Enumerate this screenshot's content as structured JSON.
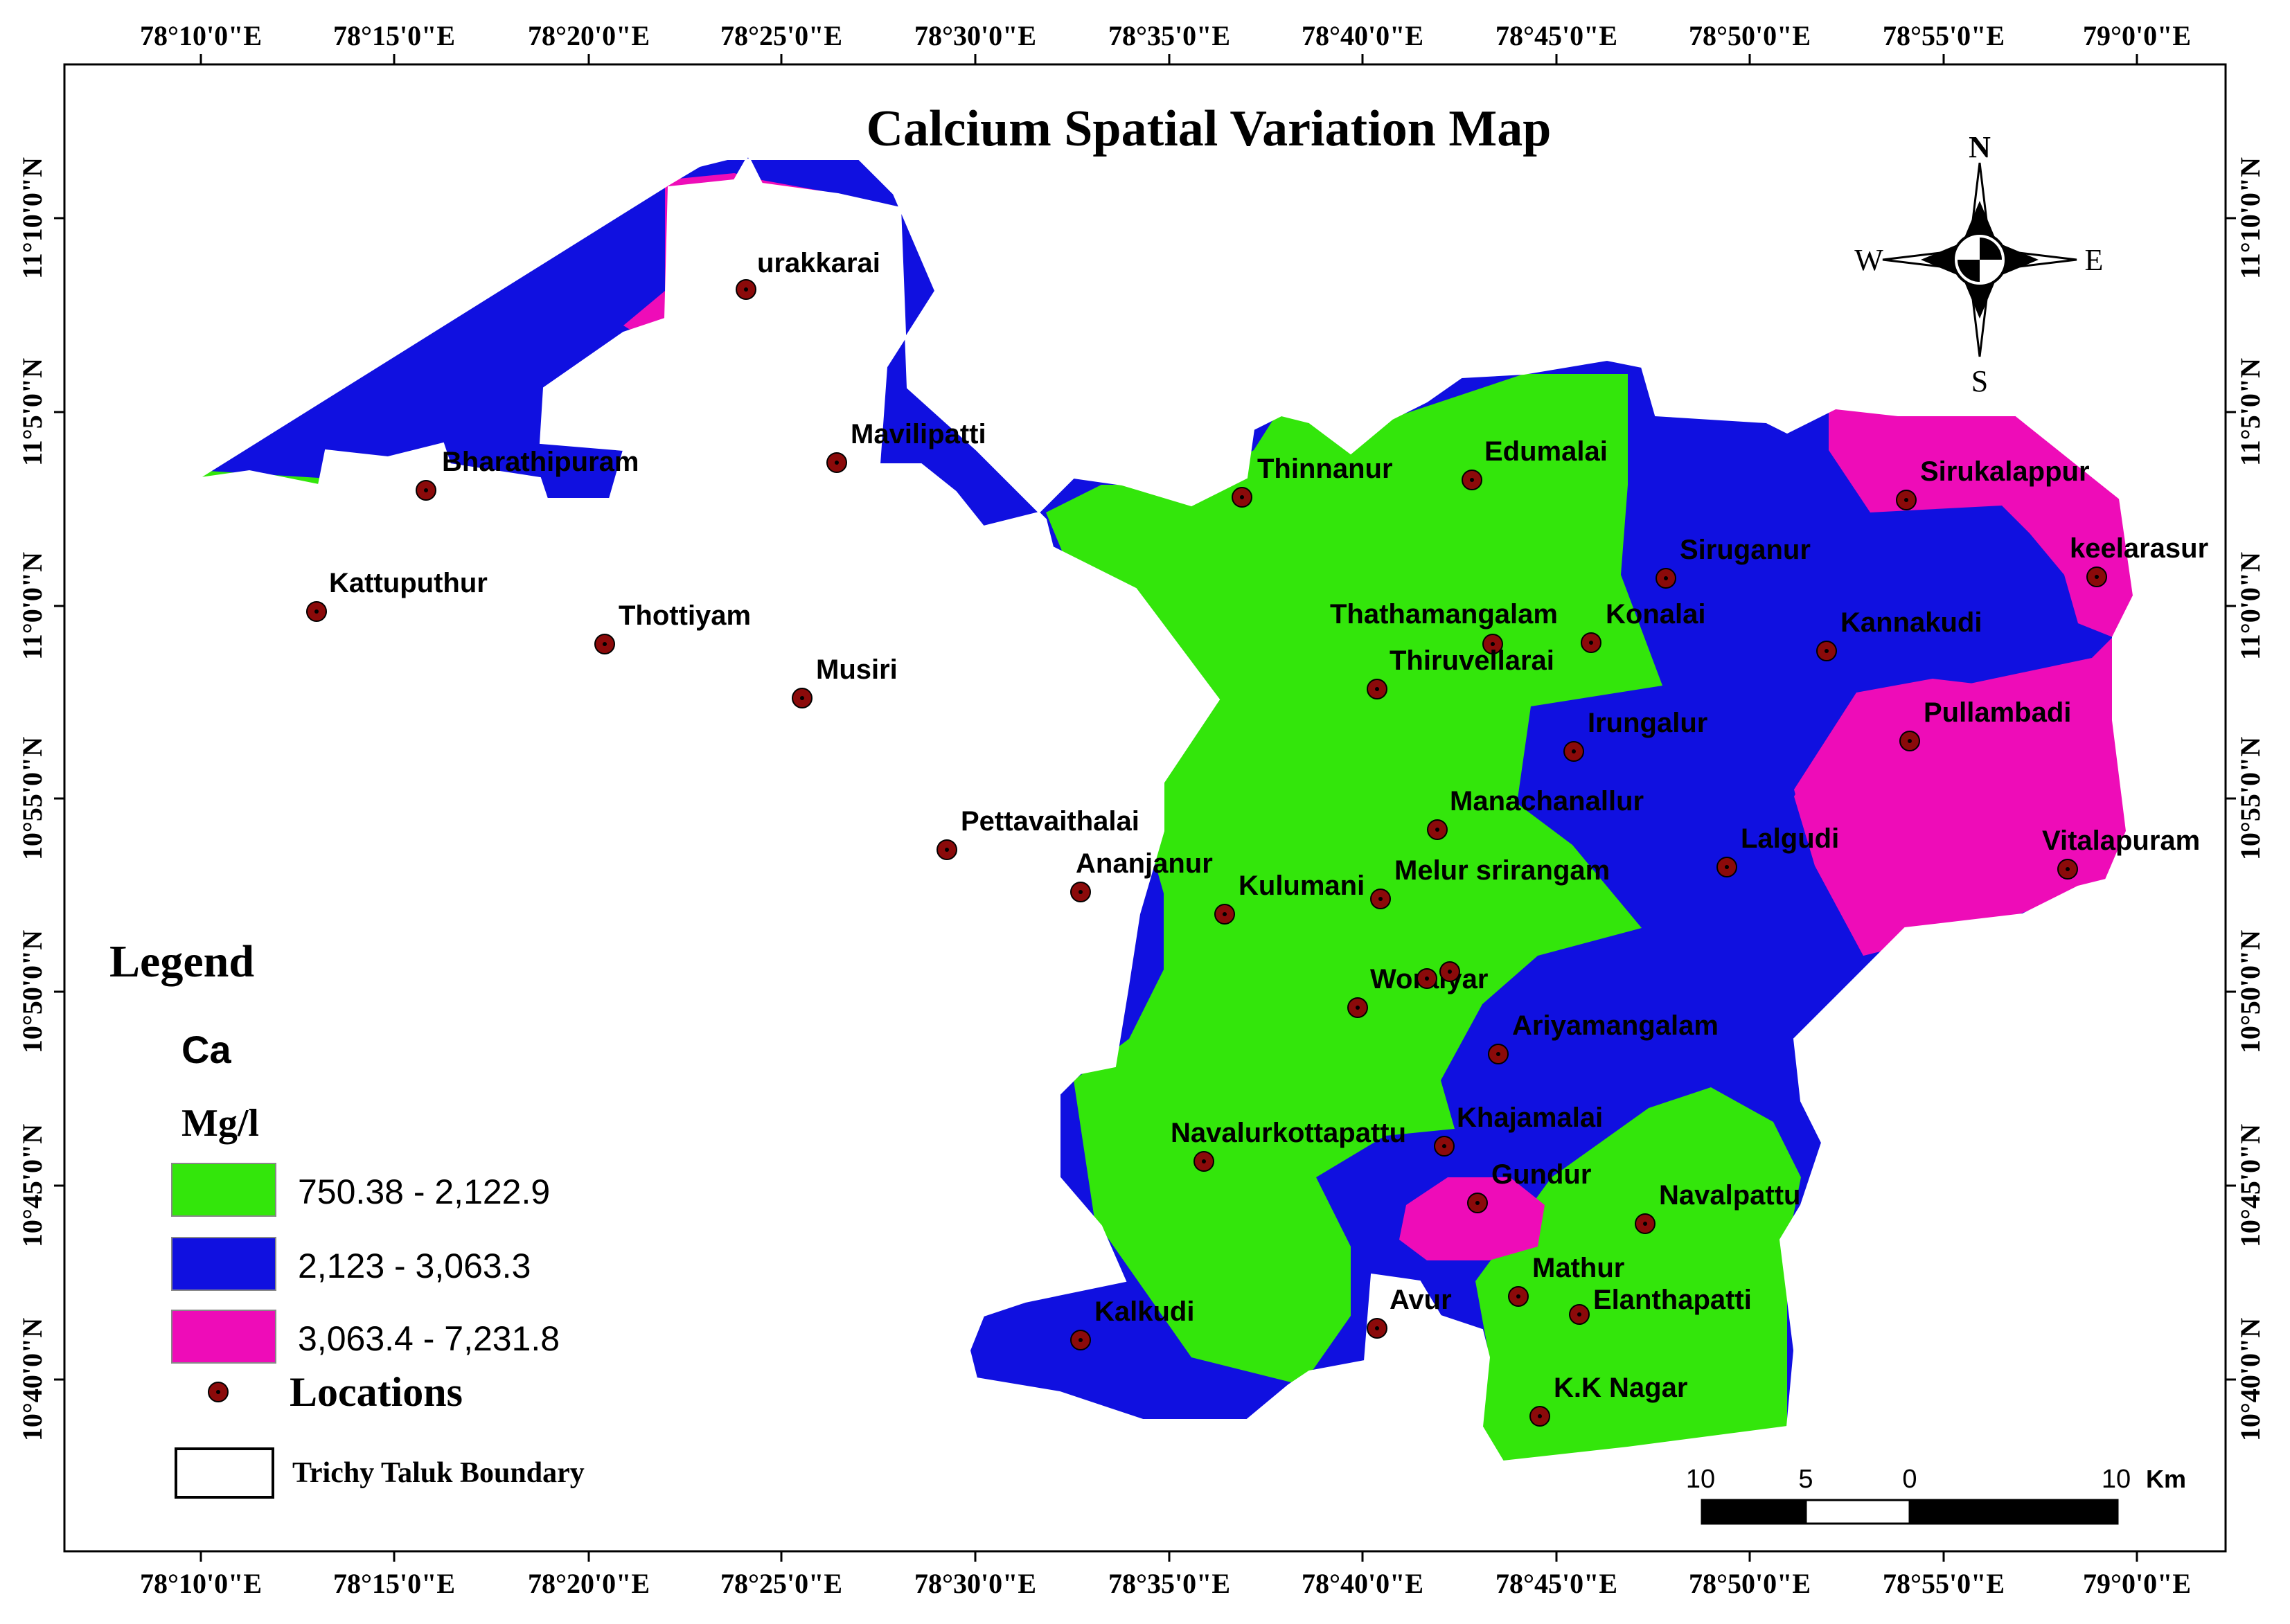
{
  "map": {
    "title": "Calcium Spatial Variation Map",
    "colors": {
      "low": "#33e60b",
      "mid": "#1010e0",
      "high": "#ee0cb8",
      "location_marker": "#8b0a0a",
      "boundary": "#ffffff"
    },
    "top_ticks": [
      "78°10'0\"E",
      "78°15'0\"E",
      "78°20'0\"E",
      "78°25'0\"E",
      "78°30'0\"E",
      "78°35'0\"E",
      "78°40'0\"E",
      "78°45'0\"E",
      "78°50'0\"E",
      "78°55'0\"E",
      "79°0'0\"E"
    ],
    "bottom_ticks": [
      "78°10'0\"E",
      "78°15'0\"E",
      "78°20'0\"E",
      "78°25'0\"E",
      "78°30'0\"E",
      "78°35'0\"E",
      "78°40'0\"E",
      "78°45'0\"E",
      "78°50'0\"E",
      "78°55'0\"E",
      "79°0'0\"E"
    ],
    "left_ticks": [
      "11°10'0\"N",
      "11°5'0\"N",
      "11°0'0\"N",
      "10°55'0\"N",
      "10°50'0\"N",
      "10°45'0\"N",
      "10°40'0\"N"
    ],
    "right_ticks": [
      "11°10'0\"N",
      "11°5'0\"N",
      "11°0'0\"N",
      "10°55'0\"N",
      "10°50'0\"N",
      "10°45'0\"N",
      "10°40'0\"N"
    ],
    "north_arrow": {
      "n": "N",
      "s": "S",
      "e": "E",
      "w": "W"
    },
    "scale_bar": {
      "labels": [
        "10",
        "5",
        "0",
        "10"
      ],
      "unit": "Km"
    },
    "legend": {
      "title": "Legend",
      "parameter": "Ca",
      "unit": "Mg/l",
      "classes": [
        {
          "label": "750.38 - 2,122.9",
          "color": "#33e60b"
        },
        {
          "label": "2,123 - 3,063.3",
          "color": "#1010e0"
        },
        {
          "label": "3,063.4 - 7,231.8",
          "color": "#ee0cb8"
        }
      ],
      "locations_label": "Locations",
      "boundary_label": "Trichy Taluk Boundary"
    },
    "locations": [
      "urakkarai",
      "Bharathipuram",
      "Mavilipatti",
      "Thinnanur",
      "Edumalai",
      "Sirukalappur",
      "Kattuputhur",
      "Thottiyam",
      "Musiri",
      "Siruganur",
      "keelarasur",
      "Thathamangalam",
      "Konalai",
      "Kannakudi",
      "Thiruvellarai",
      "Irungalur",
      "Pullambadi",
      "Manachanallur",
      "Pettavaithalai",
      "Ananjanur",
      "Kulumani",
      "Melur srirangam",
      "Lalgudi",
      "Vitalapuram",
      "Woraiyar",
      "Ariyamangalam",
      "Khajamalai",
      "Navalurkottapattu",
      "Gundur",
      "Navalpattu",
      "Mathur",
      "Elanthapatti",
      "Avur",
      "Kalkudi",
      "K.K Nagar"
    ]
  }
}
